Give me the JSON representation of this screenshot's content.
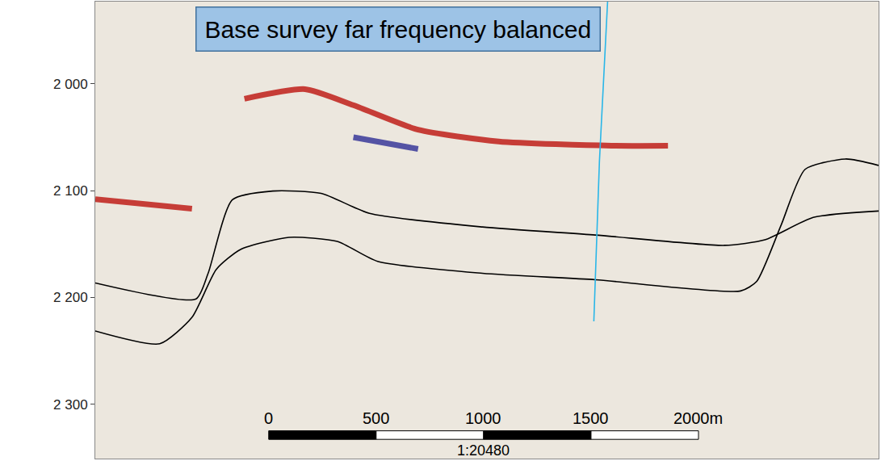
{
  "chart_data": {
    "type": "line",
    "title": "Base survey far frequency balanced",
    "xlim": [
      -807,
      2838
    ],
    "ylim": [
      2351,
      1923
    ],
    "yticks": [
      {
        "value": 2000,
        "label": "2 000"
      },
      {
        "value": 2100,
        "label": "2 100"
      },
      {
        "value": 2200,
        "label": "2 200"
      },
      {
        "value": 2300,
        "label": "2 300"
      }
    ],
    "tick_labels": "y",
    "grid": false,
    "series": [
      {
        "color": "#c0201a",
        "line_style": "bold",
        "x": [
          -113,
          169,
          394,
          695,
          1070,
          1595,
          1858
        ],
        "values": [
          2014,
          2005,
          2020,
          2043,
          2054,
          2058,
          2058
        ]
      },
      {
        "color": "#3a3a9a",
        "line_style": "bold",
        "x": [
          394,
          695
        ],
        "values": [
          2050,
          2061
        ]
      },
      {
        "color": "#c0201a",
        "line_style": "bold",
        "x": [
          -807,
          -357
        ],
        "values": [
          2108,
          2117
        ]
      },
      {
        "color": "#000000",
        "line_style": "solid",
        "x": [
          -807,
          -338,
          -282,
          -169,
          19,
          244,
          469,
          995,
          1520,
          2121,
          2309,
          2534,
          2838
        ],
        "values": [
          2186.5,
          2201.5,
          2177.5,
          2108.6,
          2100.4,
          2102.6,
          2121.3,
          2134.1,
          2141.6,
          2151.3,
          2146.1,
          2125.1,
          2119.1
        ]
      },
      {
        "color": "#000000",
        "line_style": "solid",
        "x": [
          -807,
          -507,
          -357,
          -244,
          -131,
          94,
          319,
          507,
          995,
          1520,
          2196,
          2271,
          2384,
          2496,
          2684,
          2838
        ],
        "values": [
          2231.5,
          2243.4,
          2218.7,
          2173.8,
          2155.1,
          2143.8,
          2147.6,
          2166.3,
          2177.5,
          2183.5,
          2194,
          2185,
          2132.6,
          2080.1,
          2070.4,
          2076.4
        ]
      },
      {
        "color": "#29b6e8",
        "line_style": "solid",
        "x": [
          1577,
          1539,
          1513
        ],
        "values": [
          1923,
          2072.7,
          2222.5
        ]
      }
    ],
    "scale_bar": {
      "ticks": [
        0,
        500,
        1000,
        1500,
        {
          "value": 2000,
          "label": "2000m"
        }
      ],
      "label": "1:20480"
    }
  }
}
